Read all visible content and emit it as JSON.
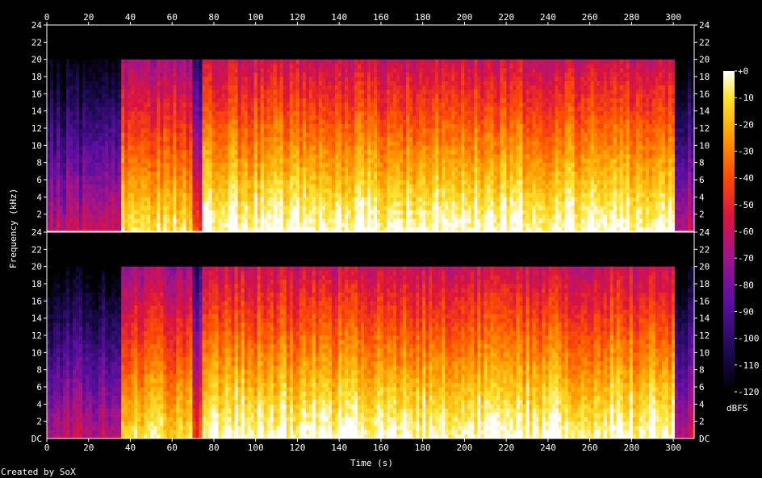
{
  "chart_data": {
    "type": "heatmap",
    "title": "",
    "xlabel": "Time (s)",
    "ylabel": "Frequency (kHz)",
    "xlim": [
      0,
      310
    ],
    "x_ticks": [
      0,
      20,
      40,
      60,
      80,
      100,
      120,
      140,
      160,
      180,
      200,
      220,
      240,
      260,
      280,
      300
    ],
    "ylim_khz": [
      0,
      24
    ],
    "y_ticks": [
      2,
      4,
      6,
      8,
      10,
      12,
      14,
      16,
      18,
      20,
      22,
      24
    ],
    "y_zero_label": "DC",
    "channels": 2,
    "colorbar": {
      "label": "dBFS",
      "range": [
        -120,
        0
      ],
      "ticks": [
        "+0",
        "-10",
        "-20",
        "-30",
        "-40",
        "-50",
        "-60",
        "-70",
        "-80",
        "-90",
        "-100",
        "-110",
        "-120"
      ],
      "colors": [
        "#000000",
        "#1a0a50",
        "#5a0fa0",
        "#a0148c",
        "#dc143c",
        "#ff5000",
        "#ffa000",
        "#ffe632",
        "#ffffff"
      ]
    },
    "footer": "Created by SoX",
    "spectrum": {
      "cutoff_khz": 20,
      "segments": [
        {
          "t0": 0,
          "t1": 36,
          "intensity": 0.28
        },
        {
          "t0": 36,
          "t1": 70,
          "intensity": 0.72
        },
        {
          "t0": 70,
          "t1": 74,
          "intensity": 0.45
        },
        {
          "t0": 74,
          "t1": 300,
          "intensity": 0.8
        },
        {
          "t0": 300,
          "t1": 310,
          "intensity": 0.3
        }
      ]
    }
  }
}
